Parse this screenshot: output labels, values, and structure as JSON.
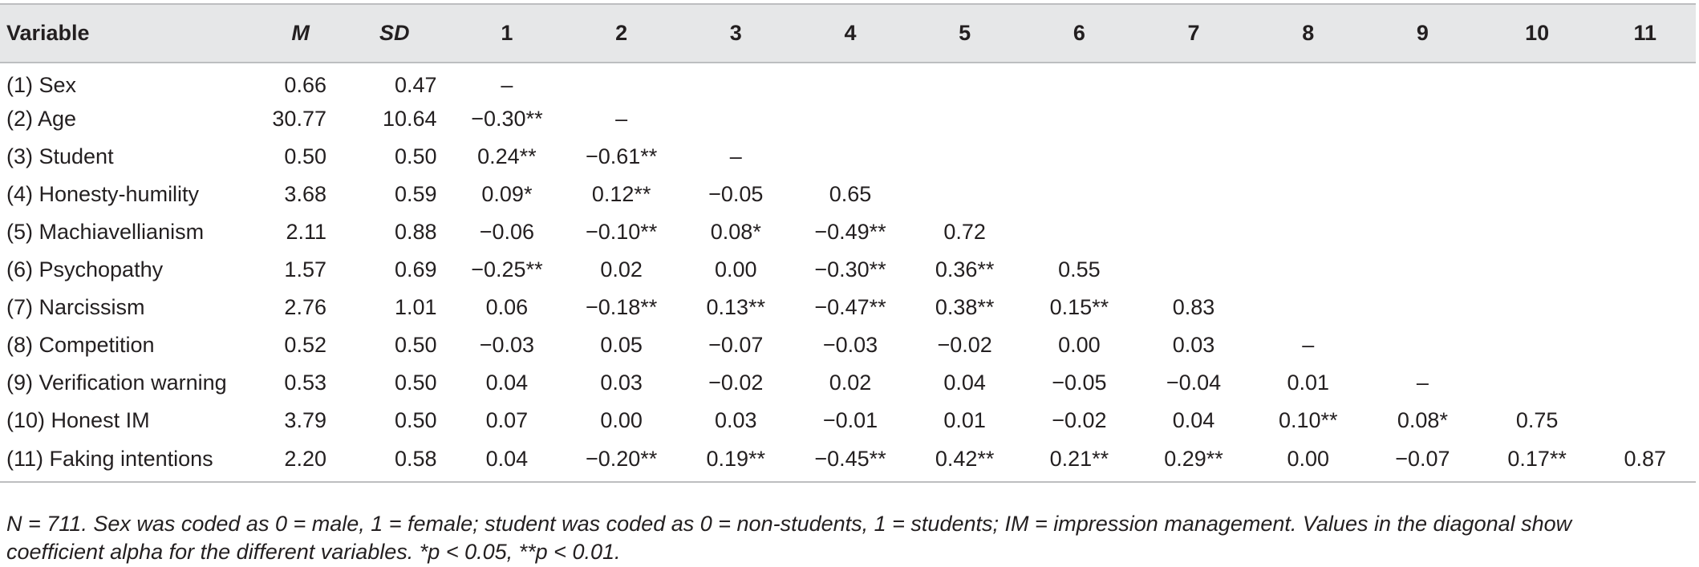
{
  "table": {
    "headers": [
      "Variable",
      "M",
      "SD",
      "1",
      "2",
      "3",
      "4",
      "5",
      "6",
      "7",
      "8",
      "9",
      "10",
      "11"
    ],
    "rows": [
      {
        "variable": "(1) Sex",
        "m": "0.66",
        "sd": "0.47",
        "cells": [
          "–",
          "",
          "",
          "",
          "",
          "",
          "",
          "",
          "",
          "",
          ""
        ]
      },
      {
        "variable": "(2) Age",
        "m": "30.77",
        "sd": "10.64",
        "cells": [
          "−0.30**",
          "–",
          "",
          "",
          "",
          "",
          "",
          "",
          "",
          "",
          ""
        ]
      },
      {
        "variable": "(3) Student",
        "m": "0.50",
        "sd": "0.50",
        "cells": [
          "0.24**",
          "−0.61**",
          "–",
          "",
          "",
          "",
          "",
          "",
          "",
          "",
          ""
        ]
      },
      {
        "variable": "(4) Honesty-humility",
        "m": "3.68",
        "sd": "0.59",
        "cells": [
          "0.09*",
          "0.12**",
          "−0.05",
          "0.65",
          "",
          "",
          "",
          "",
          "",
          "",
          ""
        ]
      },
      {
        "variable": "(5) Machiavellianism",
        "m": "2.11",
        "sd": "0.88",
        "cells": [
          "−0.06",
          "−0.10**",
          "0.08*",
          "−0.49**",
          "0.72",
          "",
          "",
          "",
          "",
          "",
          ""
        ]
      },
      {
        "variable": "(6) Psychopathy",
        "m": "1.57",
        "sd": "0.69",
        "cells": [
          "−0.25**",
          "0.02",
          "0.00",
          "−0.30**",
          "0.36**",
          "0.55",
          "",
          "",
          "",
          "",
          ""
        ]
      },
      {
        "variable": "(7) Narcissism",
        "m": "2.76",
        "sd": "1.01",
        "cells": [
          "0.06",
          "−0.18**",
          "0.13**",
          "−0.47**",
          "0.38**",
          "0.15**",
          "0.83",
          "",
          "",
          "",
          ""
        ]
      },
      {
        "variable": "(8) Competition",
        "m": "0.52",
        "sd": "0.50",
        "cells": [
          "−0.03",
          "0.05",
          "−0.07",
          "−0.03",
          "−0.02",
          "0.00",
          "0.03",
          "–",
          "",
          "",
          ""
        ]
      },
      {
        "variable": "(9) Verification warning",
        "m": "0.53",
        "sd": "0.50",
        "cells": [
          "0.04",
          "0.03",
          "−0.02",
          "0.02",
          "0.04",
          "−0.05",
          "−0.04",
          "0.01",
          "–",
          "",
          ""
        ]
      },
      {
        "variable": "(10) Honest IM",
        "m": "3.79",
        "sd": "0.50",
        "cells": [
          "0.07",
          "0.00",
          "0.03",
          "−0.01",
          "0.01",
          "−0.02",
          "0.04",
          "0.10**",
          "0.08*",
          "0.75",
          ""
        ]
      },
      {
        "variable": "(11) Faking intentions",
        "m": "2.20",
        "sd": "0.58",
        "cells": [
          "0.04",
          "−0.20**",
          "0.19**",
          "−0.45**",
          "0.42**",
          "0.21**",
          "0.29**",
          "0.00",
          "−0.07",
          "0.17**",
          "0.87"
        ]
      }
    ]
  },
  "note": {
    "line1": "N = 711. Sex was coded as 0 = male, 1 = female; student was coded as 0 = non-students, 1 = students; IM = impression management. Values in the diagonal show",
    "line2": "coefficient alpha for the different variables. *p < 0.05, **p < 0.01."
  }
}
